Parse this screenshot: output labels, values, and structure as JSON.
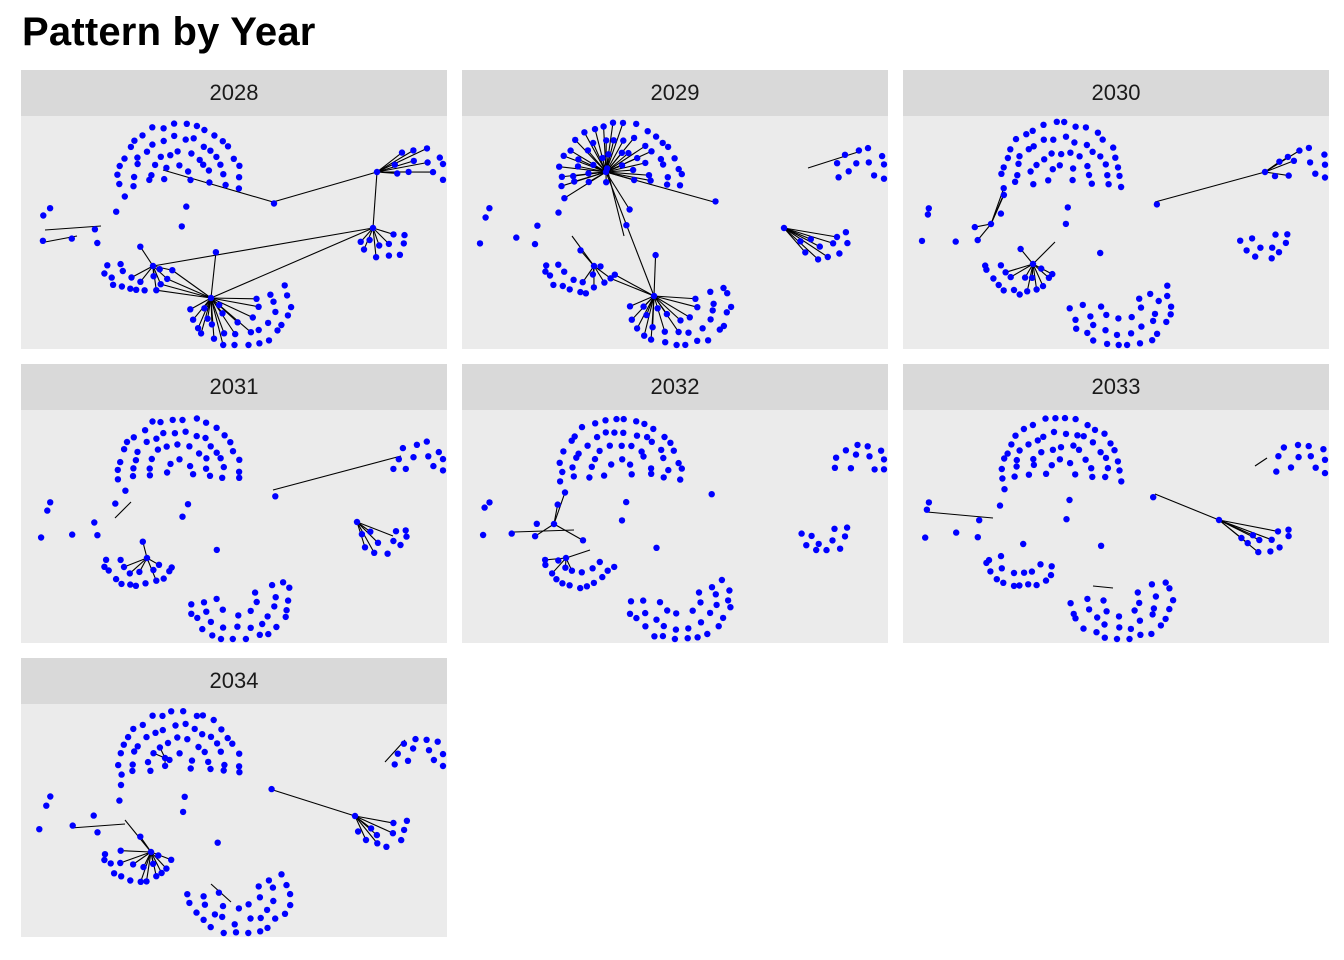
{
  "title": "Pattern by Year",
  "colors": {
    "node": "#0000ff",
    "edge": "#000000",
    "panel_bg": "#ebebeb",
    "strip_bg": "#d9d9d9"
  },
  "chart_data": {
    "type": "network-facets",
    "facets": [
      "2028",
      "2029",
      "2030",
      "2031",
      "2032",
      "2033",
      "2034"
    ],
    "layout": "3 columns, 3 rows",
    "axes": "none",
    "grid": false,
    "legend": "none"
  }
}
